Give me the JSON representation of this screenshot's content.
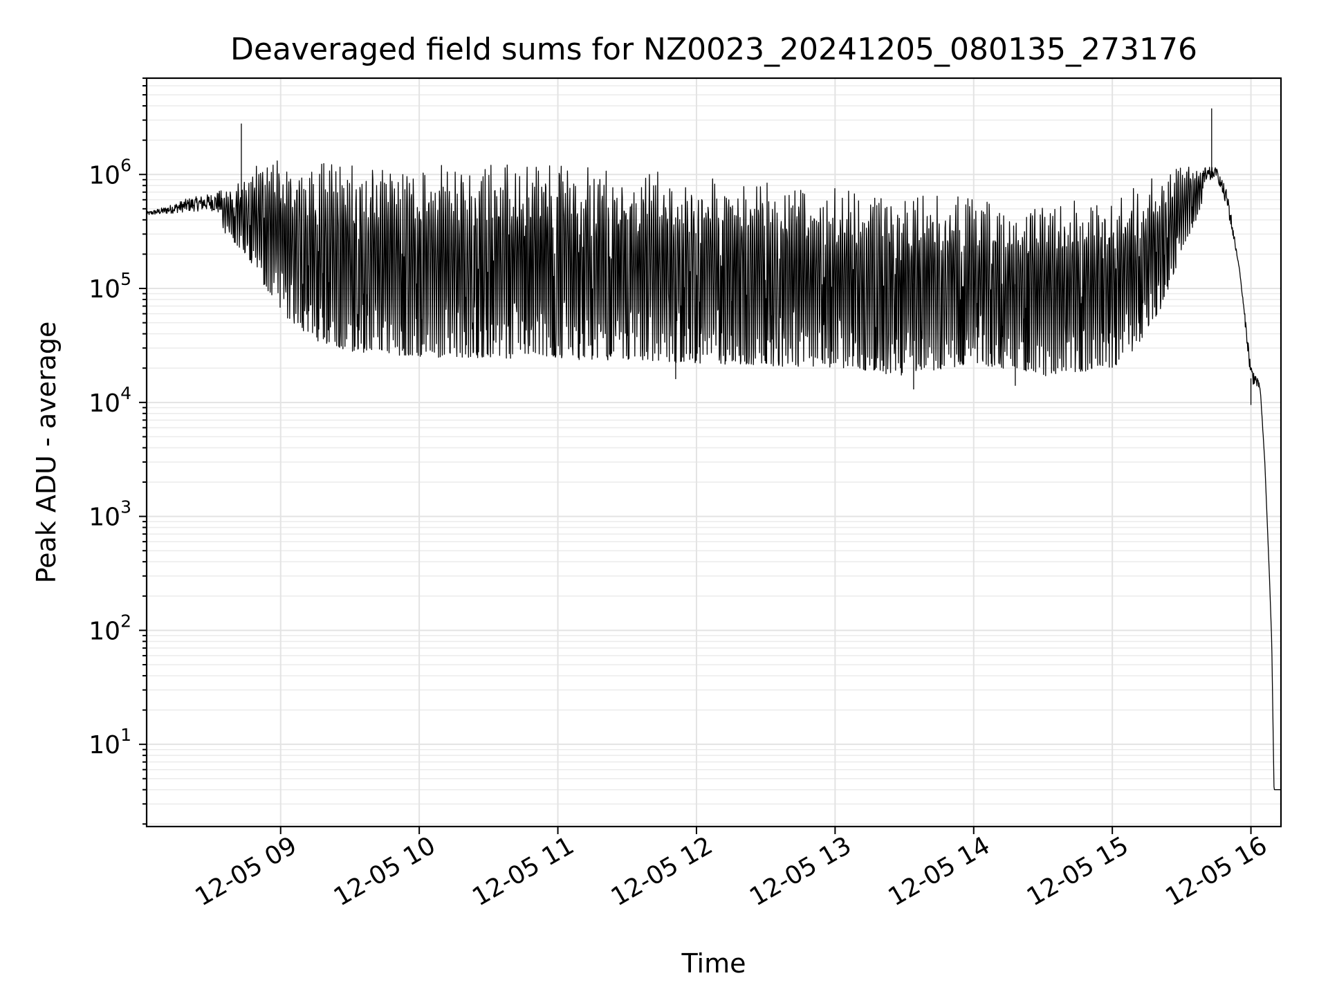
{
  "chart_data": {
    "type": "line",
    "title": "Deaveraged field sums for NZ0023_20241205_080135_273176",
    "xlabel": "Time",
    "ylabel": "Peak ADU - average",
    "x_scale": "time",
    "y_scale": "log",
    "xlim": [
      "2024-12-05T08:02",
      "2024-12-05T16:13"
    ],
    "ylim": [
      1.9,
      7000000
    ],
    "grid": true,
    "grid_minor_y": true,
    "line_color": "#000000",
    "x_ticks": [
      {
        "value": "2024-12-05T09:00",
        "label": "12-05 09"
      },
      {
        "value": "2024-12-05T10:00",
        "label": "12-05 10"
      },
      {
        "value": "2024-12-05T11:00",
        "label": "12-05 11"
      },
      {
        "value": "2024-12-05T12:00",
        "label": "12-05 12"
      },
      {
        "value": "2024-12-05T13:00",
        "label": "12-05 13"
      },
      {
        "value": "2024-12-05T14:00",
        "label": "12-05 14"
      },
      {
        "value": "2024-12-05T15:00",
        "label": "12-05 15"
      },
      {
        "value": "2024-12-05T16:00",
        "label": "12-05 16"
      }
    ],
    "y_ticks": [
      {
        "value": 10,
        "base": "10",
        "exp": "1"
      },
      {
        "value": 100,
        "base": "10",
        "exp": "2"
      },
      {
        "value": 1000,
        "base": "10",
        "exp": "3"
      },
      {
        "value": 10000,
        "base": "10",
        "exp": "4"
      },
      {
        "value": 100000,
        "base": "10",
        "exp": "5"
      },
      {
        "value": 1000000,
        "base": "10",
        "exp": "6"
      }
    ],
    "series": [
      {
        "upper_envelope": [
          [
            "2024-12-05T08:02",
            470000
          ],
          [
            "2024-12-05T08:10",
            520000
          ],
          [
            "2024-12-05T08:20",
            620000
          ],
          [
            "2024-12-05T08:30",
            680000
          ],
          [
            "2024-12-05T08:40",
            800000
          ],
          [
            "2024-12-05T08:50",
            1300000
          ],
          [
            "2024-12-05T09:00",
            1350000
          ],
          [
            "2024-12-05T10:00",
            1300000
          ],
          [
            "2024-12-05T11:00",
            1300000
          ],
          [
            "2024-12-05T11:30",
            1150000
          ],
          [
            "2024-12-05T12:00",
            1000000
          ],
          [
            "2024-12-05T12:30",
            900000
          ],
          [
            "2024-12-05T13:00",
            800000
          ],
          [
            "2024-12-05T13:30",
            700000
          ],
          [
            "2024-12-05T14:00",
            650000
          ],
          [
            "2024-12-05T14:30",
            620000
          ],
          [
            "2024-12-05T15:00",
            700000
          ],
          [
            "2024-12-05T15:20",
            1000000
          ],
          [
            "2024-12-05T15:30",
            1200000
          ],
          [
            "2024-12-05T15:45",
            1150000
          ],
          [
            "2024-12-05T15:50",
            700000
          ],
          [
            "2024-12-05T15:55",
            150000
          ],
          [
            "2024-12-05T16:00",
            22000
          ],
          [
            "2024-12-05T16:02",
            18000
          ],
          [
            "2024-12-05T16:04",
            14000
          ],
          [
            "2024-12-05T16:06",
            3000
          ],
          [
            "2024-12-05T16:08",
            300
          ],
          [
            "2024-12-05T16:09",
            80
          ],
          [
            "2024-12-05T16:10",
            4
          ],
          [
            "2024-12-05T16:13",
            4
          ]
        ],
        "lower_envelope": [
          [
            "2024-12-05T08:02",
            420000
          ],
          [
            "2024-12-05T08:30",
            400000
          ],
          [
            "2024-12-05T08:45",
            200000
          ],
          [
            "2024-12-05T09:00",
            60000
          ],
          [
            "2024-12-05T09:15",
            35000
          ],
          [
            "2024-12-05T09:30",
            28000
          ],
          [
            "2024-12-05T10:00",
            25000
          ],
          [
            "2024-12-05T11:00",
            24000
          ],
          [
            "2024-12-05T12:00",
            22000
          ],
          [
            "2024-12-05T13:00",
            20000
          ],
          [
            "2024-12-05T13:30",
            17000
          ],
          [
            "2024-12-05T14:00",
            22000
          ],
          [
            "2024-12-05T14:30",
            17000
          ],
          [
            "2024-12-05T15:00",
            20000
          ],
          [
            "2024-12-05T15:10",
            28000
          ],
          [
            "2024-12-05T15:20",
            60000
          ],
          [
            "2024-12-05T15:30",
            200000
          ],
          [
            "2024-12-05T15:40",
            600000
          ],
          [
            "2024-12-05T15:45",
            900000
          ],
          [
            "2024-12-05T15:55",
            150000
          ],
          [
            "2024-12-05T16:00",
            12000
          ],
          [
            "2024-12-05T16:04",
            12000
          ],
          [
            "2024-12-05T16:06",
            3000
          ],
          [
            "2024-12-05T16:08",
            300
          ],
          [
            "2024-12-05T16:09",
            80
          ],
          [
            "2024-12-05T16:10",
            4
          ],
          [
            "2024-12-05T16:13",
            4
          ]
        ],
        "spikes": [
          [
            "2024-12-05T08:43",
            2800000
          ],
          [
            "2024-12-05T15:43",
            3800000
          ],
          [
            "2024-12-05T16:00",
            9500
          ],
          [
            "2024-12-05T13:34",
            13000
          ],
          [
            "2024-12-05T14:18",
            14000
          ],
          [
            "2024-12-05T11:51",
            16000
          ]
        ]
      }
    ]
  }
}
